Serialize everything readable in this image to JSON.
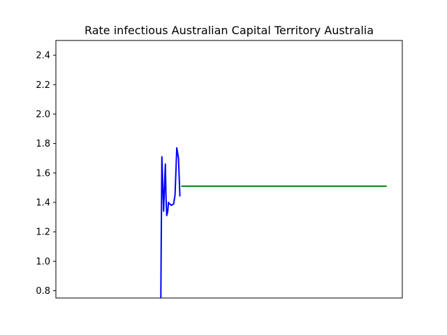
{
  "chart_data": {
    "type": "line",
    "title": "Rate infectious Australian Capital Territory Australia",
    "xlabel": "",
    "ylabel": "",
    "xlim": [
      0,
      100
    ],
    "ylim": [
      0.75,
      2.5
    ],
    "yticks": [
      0.8,
      1.0,
      1.2,
      1.4,
      1.6,
      1.8,
      2.0,
      2.2,
      2.4
    ],
    "xticks": [],
    "grid": false,
    "legend": "none",
    "series": [
      {
        "color": "#0000ff",
        "x": [
          30.3,
          30.4,
          30.6,
          31.1,
          31.6,
          31.8,
          32.0,
          32.3,
          32.5,
          32.8,
          33.4,
          34.0,
          34.4,
          34.9,
          35.4,
          35.8
        ],
        "y": [
          0.75,
          1.1,
          1.71,
          1.34,
          1.66,
          1.43,
          1.31,
          1.34,
          1.4,
          1.39,
          1.38,
          1.39,
          1.45,
          1.77,
          1.7,
          1.44
        ]
      },
      {
        "color": "#008000",
        "x": [
          36.2,
          95.5
        ],
        "y": [
          1.51,
          1.51
        ]
      }
    ]
  }
}
